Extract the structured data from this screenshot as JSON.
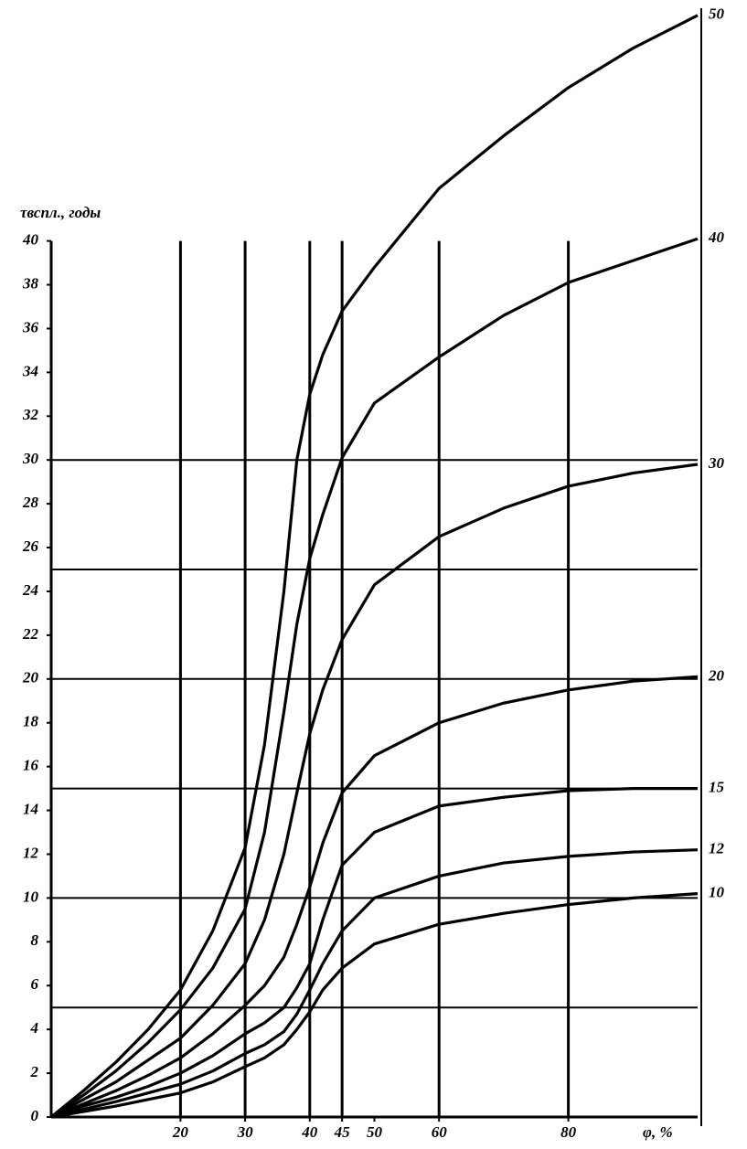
{
  "chart_data": {
    "type": "line",
    "y_label": "τвспл., годы",
    "x_label": "φ, %",
    "x": [
      0,
      5,
      10,
      15,
      20,
      25,
      30,
      33,
      36,
      38,
      40,
      42,
      45,
      50,
      60,
      70,
      80,
      90,
      100
    ],
    "series": [
      {
        "name": "50",
        "color": "#000000",
        "values": [
          0,
          1.2,
          2.5,
          4,
          5.8,
          8.5,
          12.3,
          17,
          24,
          30,
          33,
          34.8,
          36.8,
          38.8,
          42.4,
          44.8,
          47,
          48.8,
          50.3
        ]
      },
      {
        "name": "40",
        "color": "#000000",
        "values": [
          0,
          1,
          2.1,
          3.4,
          4.9,
          6.8,
          9.5,
          13,
          18.5,
          22.5,
          25.5,
          27.5,
          30.1,
          32.6,
          34.7,
          36.6,
          38.1,
          39.1,
          40.1
        ]
      },
      {
        "name": "30",
        "color": "#000000",
        "values": [
          0,
          0.8,
          1.6,
          2.6,
          3.6,
          5.1,
          7,
          9,
          12,
          14.8,
          17.5,
          19.5,
          21.8,
          24.3,
          26.5,
          27.8,
          28.8,
          29.4,
          29.8
        ]
      },
      {
        "name": "20",
        "color": "#000000",
        "values": [
          0,
          0.6,
          1.2,
          1.9,
          2.7,
          3.8,
          5.1,
          6,
          7.3,
          8.8,
          10.5,
          12.5,
          14.8,
          16.5,
          18,
          18.9,
          19.5,
          19.9,
          20.1
        ]
      },
      {
        "name": "15",
        "color": "#000000",
        "values": [
          0,
          0.5,
          0.9,
          1.4,
          2,
          2.8,
          3.8,
          4.3,
          5,
          5.9,
          7,
          9,
          11.5,
          13,
          14.2,
          14.6,
          14.9,
          15,
          15
        ]
      },
      {
        "name": "12",
        "color": "#000000",
        "values": [
          0,
          0.35,
          0.7,
          1.1,
          1.5,
          2.1,
          2.9,
          3.3,
          3.9,
          4.7,
          5.8,
          7,
          8.5,
          10,
          11,
          11.6,
          11.9,
          12.1,
          12.2
        ]
      },
      {
        "name": "10",
        "color": "#000000",
        "values": [
          0,
          0.25,
          0.5,
          0.8,
          1.1,
          1.6,
          2.3,
          2.7,
          3.3,
          4,
          4.8,
          5.8,
          6.8,
          7.9,
          8.8,
          9.3,
          9.7,
          10,
          10.2
        ]
      }
    ],
    "xlim": [
      0,
      100
    ],
    "ylim": [
      0,
      50
    ],
    "xticks": [
      20,
      30,
      40,
      45,
      50,
      60,
      80
    ],
    "yticks": [
      0,
      2,
      4,
      6,
      8,
      10,
      12,
      14,
      16,
      18,
      20,
      22,
      24,
      26,
      28,
      30,
      32,
      34,
      36,
      38,
      40
    ],
    "grid_x": [
      20,
      30,
      40,
      45,
      60,
      80
    ],
    "grid_y": [
      5,
      10,
      15,
      20,
      25,
      30
    ]
  }
}
